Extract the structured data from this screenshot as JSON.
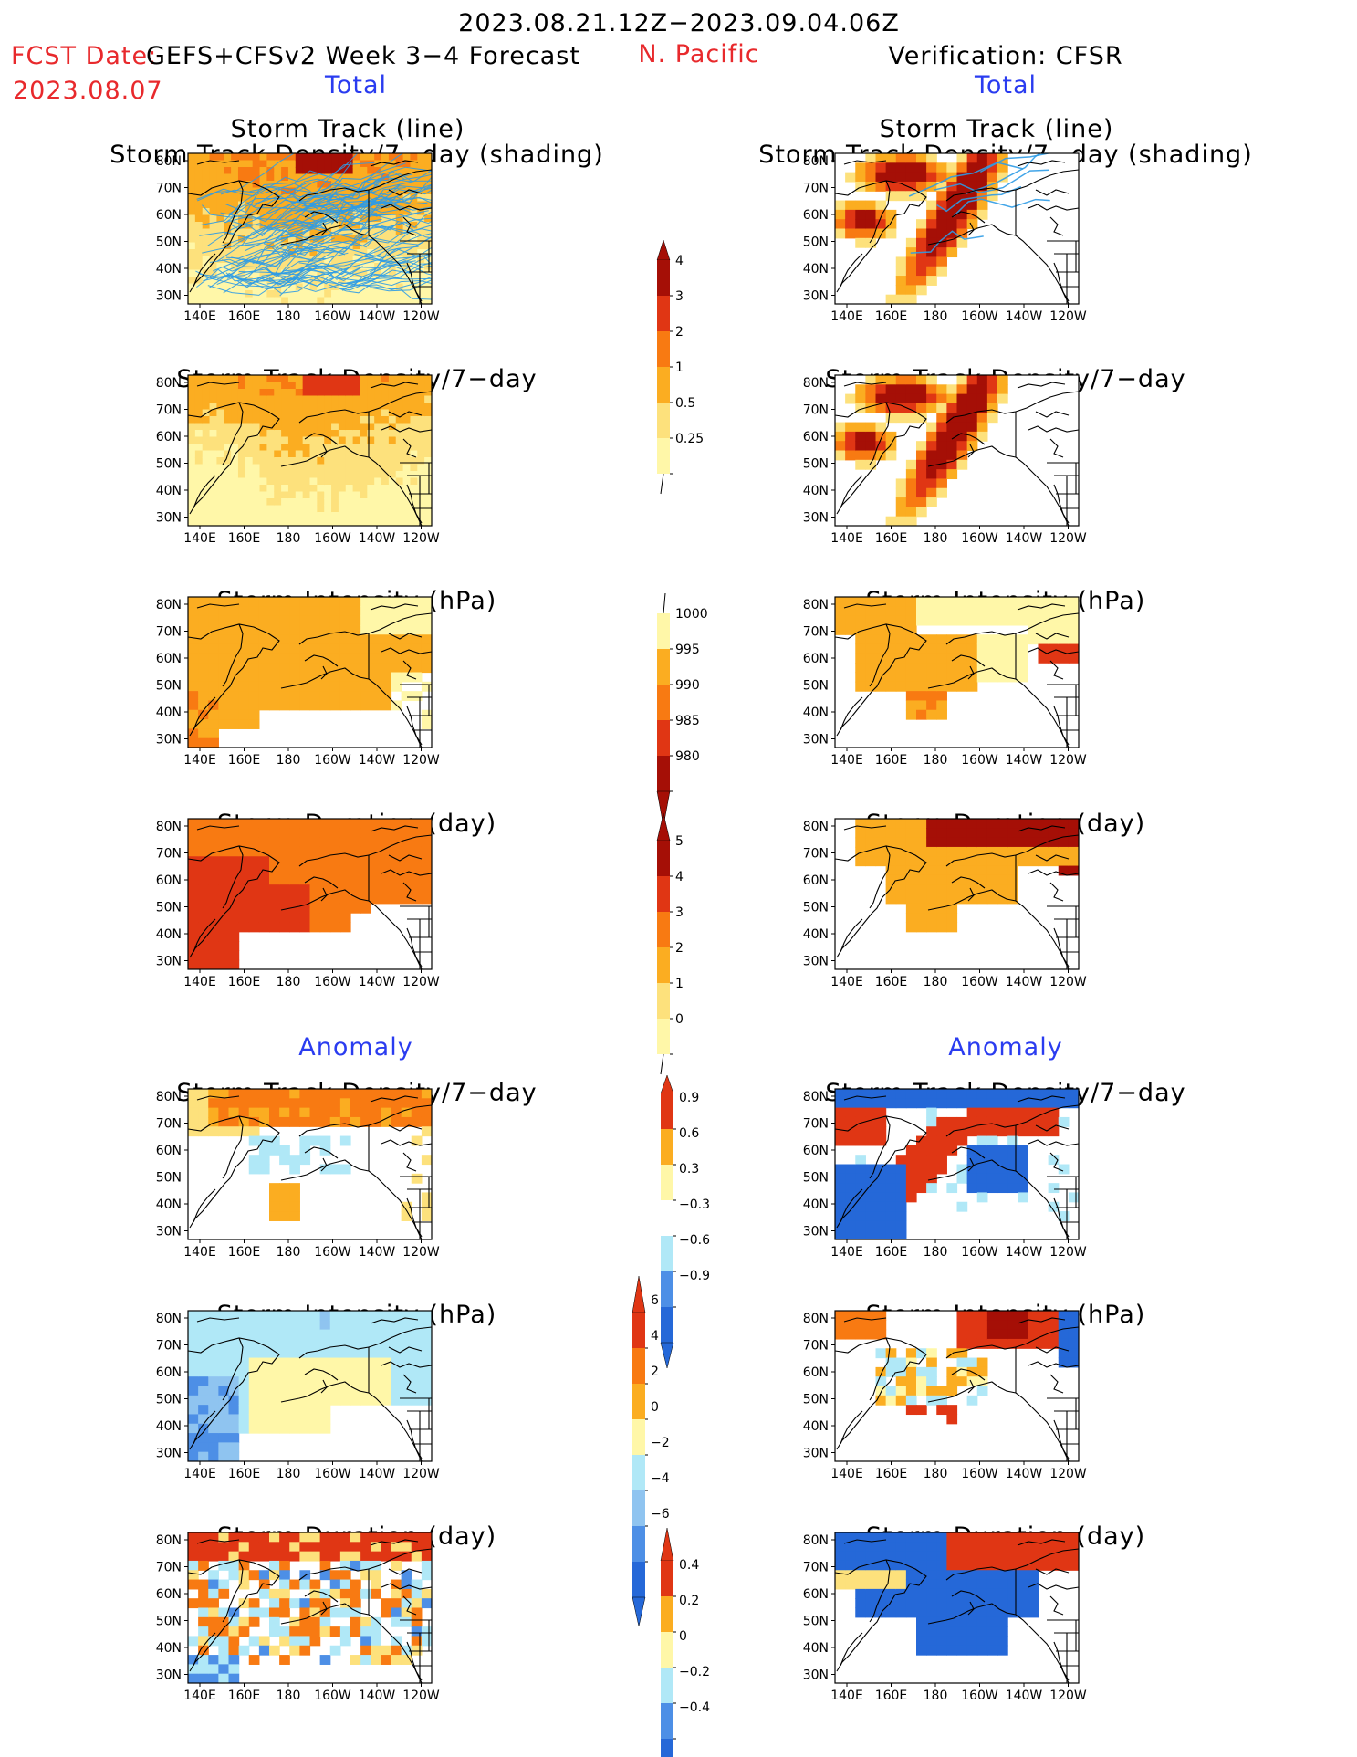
{
  "header": {
    "period": "2023.08.21.12Z−2023.09.04.06Z",
    "fcst_label": "FCST Date:",
    "model": "GEFS+CFSv2 Week 3−4 Forecast",
    "fcst_date": "2023.08.07",
    "region": "N. Pacific",
    "verification": "Verification: CFSR",
    "total_left": "Total",
    "total_right": "Total",
    "anomaly_left": "Anomaly",
    "anomaly_right": "Anomaly"
  },
  "panel_titles": {
    "storm_track_line": "Storm Track (line)",
    "storm_track_shading": "Storm Track Density/7−day (shading)",
    "density": "Storm Track Density/7−day",
    "intensity": "Storm Intensity (hPa)",
    "duration": "Storm Duration (day)"
  },
  "axes": {
    "lon_ticks": [
      "140E",
      "160E",
      "180",
      "160W",
      "140W",
      "120W"
    ],
    "lat_ticks": [
      "80N",
      "70N",
      "60N",
      "50N",
      "40N",
      "30N"
    ]
  },
  "colorbars": {
    "density_total": [
      "4",
      "3",
      "2",
      "1",
      "0.5",
      "0.25"
    ],
    "intensity_total": [
      "1000",
      "995",
      "990",
      "985",
      "980"
    ],
    "duration_total": [
      "5",
      "4",
      "3",
      "2",
      "1",
      "0"
    ],
    "density_anom": [
      "0.9",
      "0.6",
      "0.3",
      "−0.3",
      "−0.6",
      "−0.9"
    ],
    "intensity_anom": [
      "6",
      "4",
      "2",
      "0",
      "−2",
      "−4",
      "−6"
    ],
    "duration_anom": [
      "0.4",
      "0.2",
      "0",
      "−0.2",
      "−0.4"
    ]
  },
  "colors": {
    "title_red": "#e8292c",
    "title_blue": "#2a3cf0",
    "track_line": "#2e9be6",
    "warm_scale": [
      "#fff7a8",
      "#fde17c",
      "#fbad21",
      "#f87a12",
      "#e03614",
      "#a50f06"
    ],
    "cool_scale": [
      "#b0e8f7",
      "#8fc4f0",
      "#4d8fe6",
      "#2568d8",
      "#1a4fd0"
    ]
  }
}
